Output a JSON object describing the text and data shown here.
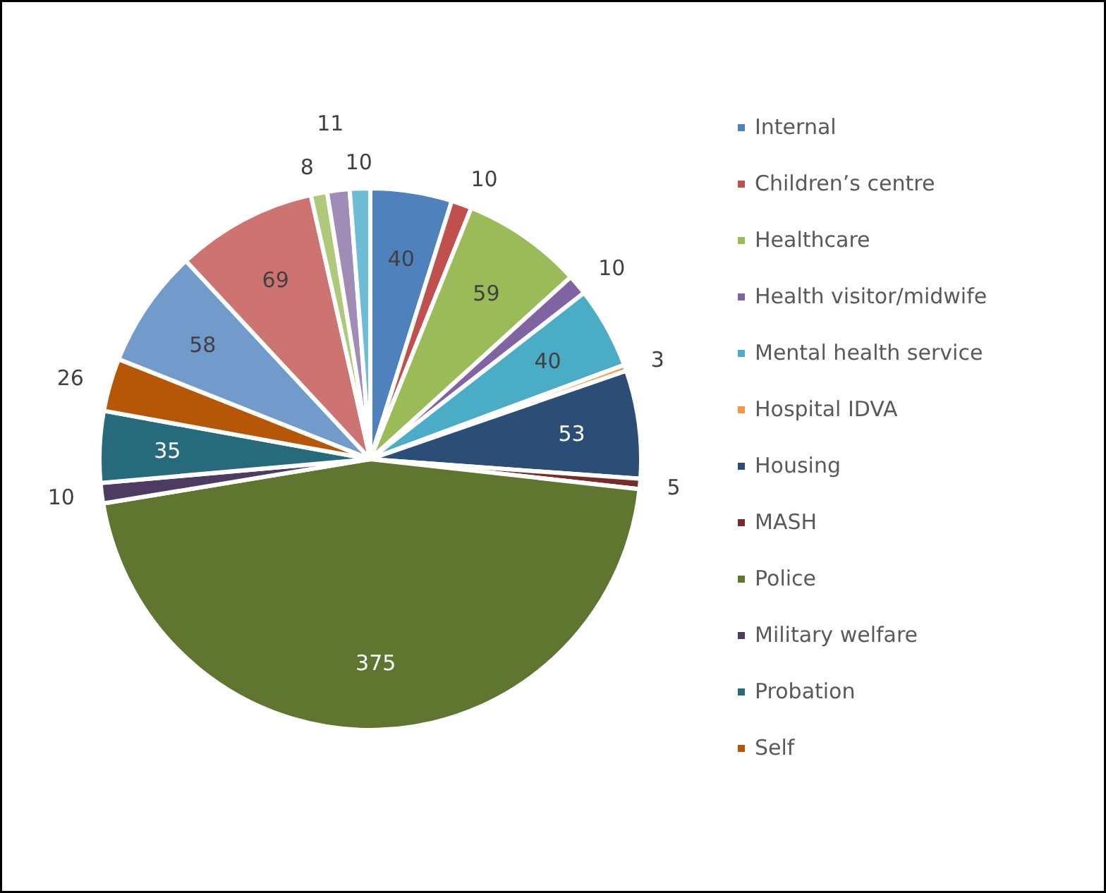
{
  "chart_data": {
    "type": "pie",
    "categories": [
      "Internal",
      "Children’s centre",
      "Healthcare",
      "Health visitor/midwife",
      "Mental health service",
      "Hospital IDVA",
      "Housing",
      "MASH",
      "Police",
      "Military welfare",
      "Probation",
      "Self",
      null,
      null,
      null,
      null,
      null
    ],
    "values": [
      40,
      10,
      59,
      10,
      40,
      3,
      53,
      5,
      375,
      10,
      35,
      26,
      58,
      69,
      8,
      11,
      10
    ],
    "colors": [
      "#4f81bd",
      "#c0504d",
      "#9bbb59",
      "#8064a2",
      "#4bacc6",
      "#f79646",
      "#2c4d75",
      "#772c2a",
      "#5f7530",
      "#4d3b62",
      "#276a7c",
      "#b65708",
      "#729aca",
      "#cd7371",
      "#afc97a",
      "#9f8cb7",
      "#6fbdd4"
    ],
    "data_labels": true,
    "legend": "right"
  }
}
